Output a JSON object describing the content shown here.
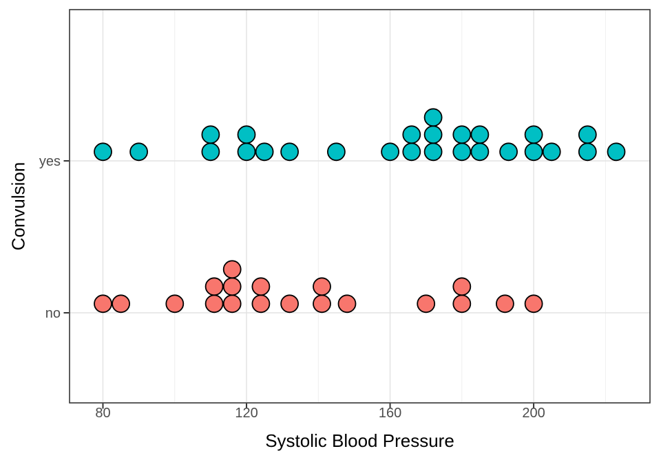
{
  "chart_data": {
    "type": "scatter",
    "subtype": "dotplot",
    "title": "",
    "xlabel": "Systolic Blood Pressure",
    "ylabel": "Convulsion",
    "x_tick_labels": [
      "80",
      "120",
      "160",
      "200"
    ],
    "x_major_ticks": [
      80,
      120,
      160,
      200
    ],
    "x_minor_ticks": [
      100,
      140,
      180,
      220
    ],
    "xlim": [
      70.7,
      232.4
    ],
    "categories": [
      "no",
      "yes"
    ],
    "grid": "on",
    "legend": "none",
    "series": [
      {
        "name": "yes",
        "category": "yes",
        "color": "#00BFC4",
        "values": [
          80,
          90,
          110,
          110,
          120,
          120,
          125,
          132,
          145,
          160,
          166,
          166,
          172,
          172,
          172,
          180,
          180,
          185,
          185,
          193,
          200,
          200,
          205,
          215,
          215,
          223
        ]
      },
      {
        "name": "no",
        "category": "no",
        "color": "#F8766D",
        "values": [
          80,
          85,
          100,
          111,
          111,
          116,
          116,
          116,
          124,
          124,
          132,
          141,
          141,
          148,
          170,
          180,
          180,
          192,
          200
        ]
      }
    ]
  },
  "colors": {
    "point_outline": "#000000",
    "panel_border": "#343434",
    "grid_major": "#e2e2e2",
    "grid_minor": "#ececec",
    "tick_mark": "#333333",
    "tick_label": "#4d4d4d",
    "axis_title": "#000000",
    "background": "#ffffff"
  }
}
